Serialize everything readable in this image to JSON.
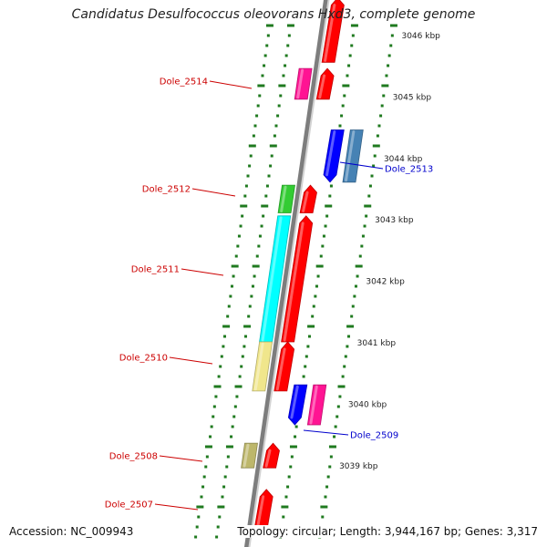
{
  "genome": {
    "title": "Candidatus Desulfococcus oleovorans Hxd3, complete genome",
    "accession_label": "Accession: NC_009943",
    "summary_label": "Topology: circular; Length: 3,944,167 bp; Genes: 3,317"
  },
  "colors": {
    "background": "#ffffff",
    "backbone_dark": "#7d7d7d",
    "backbone_light": "#d2d2d2",
    "tick_green": "#1f7a1f",
    "label_red": "#cc0000",
    "label_blue": "#0000cc",
    "scale_text": "#222222"
  },
  "scale_labels": [
    {
      "kbp": 3046,
      "text": "3046 kbp"
    },
    {
      "kbp": 3045,
      "text": "3045 kbp"
    },
    {
      "kbp": 3044,
      "text": "3044 kbp"
    },
    {
      "kbp": 3043,
      "text": "3043 kbp"
    },
    {
      "kbp": 3042,
      "text": "3042 kbp"
    },
    {
      "kbp": 3041,
      "text": "3041 kbp"
    },
    {
      "kbp": 3040,
      "text": "3040 kbp"
    },
    {
      "kbp": 3039,
      "text": "3039 kbp"
    }
  ],
  "gene_labels": [
    {
      "name": "Dole_2514",
      "color": "#cc0000"
    },
    {
      "name": "Dole_2513",
      "color": "#0000cc"
    },
    {
      "name": "Dole_2512",
      "color": "#cc0000"
    },
    {
      "name": "Dole_2511",
      "color": "#cc0000"
    },
    {
      "name": "Dole_2510",
      "color": "#cc0000"
    },
    {
      "name": "Dole_2509",
      "color": "#0000cc"
    },
    {
      "name": "Dole_2508",
      "color": "#cc0000"
    },
    {
      "name": "Dole_2507",
      "color": "#cc0000"
    }
  ],
  "features": [
    {
      "kind": "cds-forward",
      "start_kbp": 3045.55,
      "end_kbp": 3046.6,
      "color": "#ff0000"
    },
    {
      "kind": "gene-forward",
      "start_kbp": 3044.95,
      "end_kbp": 3045.45,
      "color": "#ff1493"
    },
    {
      "kind": "cds-forward",
      "start_kbp": 3044.95,
      "end_kbp": 3045.45,
      "color": "#ff0000"
    },
    {
      "kind": "cds-reverse",
      "start_kbp": 3043.6,
      "end_kbp": 3044.45,
      "color": "#0000ff"
    },
    {
      "kind": "gene-reverse",
      "start_kbp": 3043.6,
      "end_kbp": 3044.45,
      "color": "#4682b4"
    },
    {
      "kind": "gene-forward",
      "start_kbp": 3043.1,
      "end_kbp": 3043.55,
      "color": "#33cc33"
    },
    {
      "kind": "cds-forward",
      "start_kbp": 3043.1,
      "end_kbp": 3043.55,
      "color": "#ff0000"
    },
    {
      "kind": "gene-forward",
      "start_kbp": 3041.0,
      "end_kbp": 3043.05,
      "color": "#00ffff"
    },
    {
      "kind": "cds-forward",
      "start_kbp": 3041.0,
      "end_kbp": 3043.05,
      "color": "#ff0000"
    },
    {
      "kind": "gene-forward",
      "start_kbp": 3040.2,
      "end_kbp": 3041.0,
      "color": "#f0e68c"
    },
    {
      "kind": "cds-forward",
      "start_kbp": 3040.2,
      "end_kbp": 3041.0,
      "color": "#ff0000"
    },
    {
      "kind": "cds-reverse",
      "start_kbp": 3039.65,
      "end_kbp": 3040.3,
      "color": "#0000ff"
    },
    {
      "kind": "gene-reverse",
      "start_kbp": 3039.65,
      "end_kbp": 3040.3,
      "color": "#ff1493"
    },
    {
      "kind": "gene-forward",
      "start_kbp": 3038.95,
      "end_kbp": 3039.35,
      "color": "#bdb76b"
    },
    {
      "kind": "cds-forward",
      "start_kbp": 3038.95,
      "end_kbp": 3039.35,
      "color": "#ff0000"
    },
    {
      "kind": "cds-forward",
      "start_kbp": 3037.85,
      "end_kbp": 3038.6,
      "color": "#ff0000"
    }
  ]
}
